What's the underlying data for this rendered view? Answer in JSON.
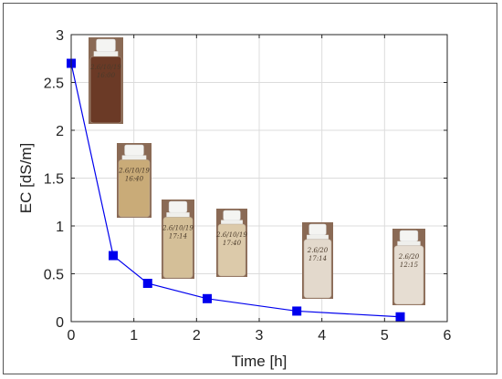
{
  "chart_data": {
    "type": "line",
    "xlabel": "Time [h]",
    "ylabel": "EC [dS/m]",
    "xlim": [
      0,
      6
    ],
    "ylim": [
      0,
      3
    ],
    "x_ticks": [
      "0",
      "1",
      "2",
      "3",
      "4",
      "5",
      "6"
    ],
    "y_ticks": [
      "0",
      "0.5",
      "1",
      "1.5",
      "2",
      "2.5",
      "3"
    ],
    "grid": true,
    "series": [
      {
        "x": [
          0,
          0.67,
          1.22,
          2.17,
          3.6,
          5.25
        ],
        "y": [
          2.7,
          0.69,
          0.4,
          0.24,
          0.11,
          0.05
        ],
        "color": "#0000ee",
        "marker": "square"
      }
    ],
    "annotations": [
      {
        "kind": "sample-bottle-photo",
        "text": "2.6/10/19\n16:00",
        "liquid": "#6b3a26"
      },
      {
        "kind": "sample-bottle-photo",
        "text": "2.6/10/19\n16:40",
        "liquid": "#c9ab78"
      },
      {
        "kind": "sample-bottle-photo",
        "text": "2.6/10/19\n17:14",
        "liquid": "#d4bf98"
      },
      {
        "kind": "sample-bottle-photo",
        "text": "2.6/10/19\n17:40",
        "liquid": "#dccaaa"
      },
      {
        "kind": "sample-bottle-photo",
        "text": "2.6/20\n17:14",
        "liquid": "#e3d9cc"
      },
      {
        "kind": "sample-bottle-photo",
        "text": "2.6/20\n12:15",
        "liquid": "#e6ddd2"
      }
    ]
  }
}
